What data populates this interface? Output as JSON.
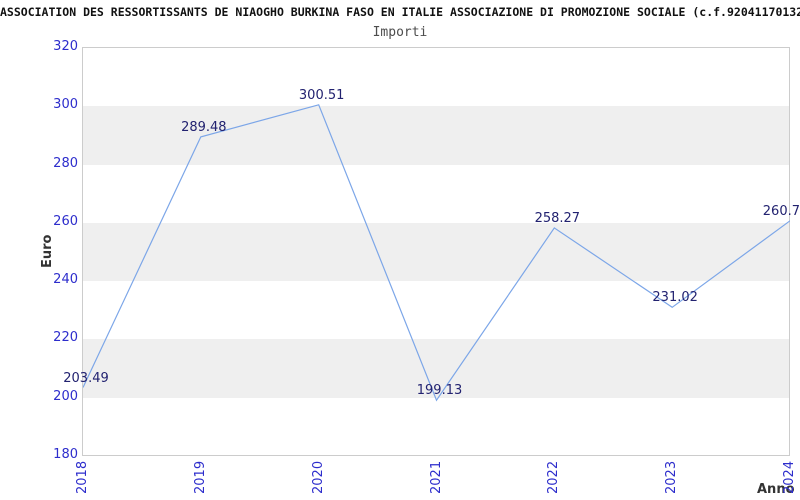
{
  "chart_data": {
    "type": "line",
    "title": "ASSOCIATION DES RESSORTISSANTS DE NIAOGHO BURKINA FASO EN ITALIE ASSOCIAZIONE DI PROMOZIONE SOCIALE (c.f.92041170132",
    "subtitle": "Importi",
    "ylabel": "Euro",
    "xlabel": "Anno",
    "categories": [
      "2018",
      "2019",
      "2020",
      "2021",
      "2022",
      "2023",
      "2024"
    ],
    "values": [
      203.49,
      289.48,
      300.51,
      199.13,
      258.27,
      231.02,
      260.7
    ],
    "point_labels": [
      "203.49",
      "289.48",
      "300.51",
      "199.13",
      "258.27",
      "231.02",
      "260.7"
    ],
    "yticks": [
      180,
      200,
      220,
      240,
      260,
      280,
      300,
      320
    ],
    "ylim": [
      180,
      320
    ],
    "grid": "alternating-horizontal-bands",
    "legend_position": "none",
    "colors": {
      "line": "#7CA6E8",
      "band": "#EFEFEF",
      "tick_label": "#2D2DCC",
      "data_label": "#222270",
      "plot_border": "#CCCCCC",
      "title": "#111111",
      "subtitle": "#4D4D4D",
      "axis_title": "#333333",
      "background": "#FFFFFF"
    }
  }
}
